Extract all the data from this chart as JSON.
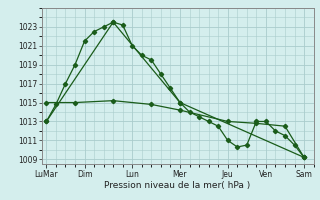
{
  "background_color": "#d4eeed",
  "grid_color": "#aacccc",
  "line_color": "#1a5c1a",
  "xlabel": "Pression niveau de la mer( hPa )",
  "ylim": [
    1008.5,
    1025.0
  ],
  "yticks": [
    1009,
    1011,
    1013,
    1015,
    1017,
    1019,
    1021,
    1023
  ],
  "x_labels": [
    "LuMar",
    "Dim",
    "Lun",
    "Mer",
    "Jeu",
    "Ven",
    "Sam"
  ],
  "x_tick_pos": [
    0,
    4,
    9,
    14,
    19,
    23,
    27
  ],
  "xlim": [
    -0.5,
    28.0
  ],
  "series": [
    {
      "x": [
        0,
        1,
        2,
        3,
        4,
        5,
        6,
        7,
        8,
        9,
        10,
        11,
        12,
        13,
        14,
        15,
        16,
        17,
        18,
        19,
        20,
        21,
        22,
        23,
        24,
        25,
        26,
        27
      ],
      "y": [
        1013.0,
        1014.8,
        1017.0,
        1019.0,
        1021.5,
        1022.5,
        1023.0,
        1023.5,
        1023.2,
        1021.0,
        1020.0,
        1019.5,
        1018.0,
        1016.5,
        1015.0,
        1014.0,
        1013.5,
        1013.0,
        1012.5,
        1011.0,
        1010.3,
        1010.5,
        1013.0,
        1013.0,
        1012.0,
        1011.5,
        1010.5,
        1009.2
      ]
    },
    {
      "x": [
        0,
        7,
        14,
        27
      ],
      "y": [
        1013.0,
        1023.5,
        1015.0,
        1009.2
      ]
    },
    {
      "x": [
        0,
        3,
        7,
        11,
        14,
        19,
        22,
        25,
        27
      ],
      "y": [
        1015.0,
        1015.0,
        1015.2,
        1014.8,
        1014.2,
        1013.0,
        1012.8,
        1012.5,
        1009.2
      ]
    }
  ]
}
